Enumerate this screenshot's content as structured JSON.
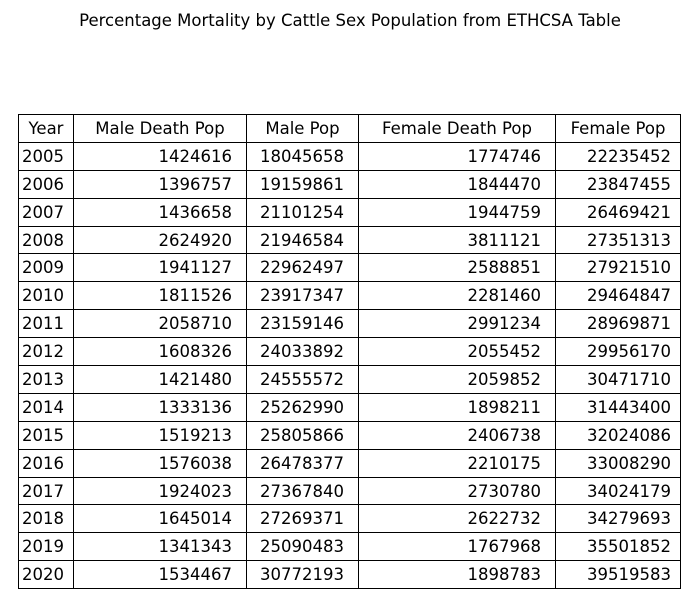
{
  "chart_data": {
    "type": "table",
    "title": "Percentage Mortality by Cattle Sex Population from ETHCSA Table",
    "columns": [
      "Year",
      "Male Death Pop",
      "Male Pop",
      "Female Death Pop",
      "Female Pop"
    ],
    "rows": [
      [
        "2005",
        "1424616",
        "18045658",
        "1774746",
        "22235452"
      ],
      [
        "2006",
        "1396757",
        "19159861",
        "1844470",
        "23847455"
      ],
      [
        "2007",
        "1436658",
        "21101254",
        "1944759",
        "26469421"
      ],
      [
        "2008",
        "2624920",
        "21946584",
        "3811121",
        "27351313"
      ],
      [
        "2009",
        "1941127",
        "22962497",
        "2588851",
        "27921510"
      ],
      [
        "2010",
        "1811526",
        "23917347",
        "2281460",
        "29464847"
      ],
      [
        "2011",
        "2058710",
        "23159146",
        "2991234",
        "28969871"
      ],
      [
        "2012",
        "1608326",
        "24033892",
        "2055452",
        "29956170"
      ],
      [
        "2013",
        "1421480",
        "24555572",
        "2059852",
        "30471710"
      ],
      [
        "2014",
        "1333136",
        "25262990",
        "1898211",
        "31443400"
      ],
      [
        "2015",
        "1519213",
        "25805866",
        "2406738",
        "32024086"
      ],
      [
        "2016",
        "1576038",
        "26478377",
        "2210175",
        "33008290"
      ],
      [
        "2017",
        "1924023",
        "27367840",
        "2730780",
        "34024179"
      ],
      [
        "2018",
        "1645014",
        "27269371",
        "2622732",
        "34279693"
      ],
      [
        "2019",
        "1341343",
        "25090483",
        "1767968",
        "35501852"
      ],
      [
        "2020",
        "1534467",
        "30772193",
        "1898783",
        "39519583"
      ]
    ]
  }
}
